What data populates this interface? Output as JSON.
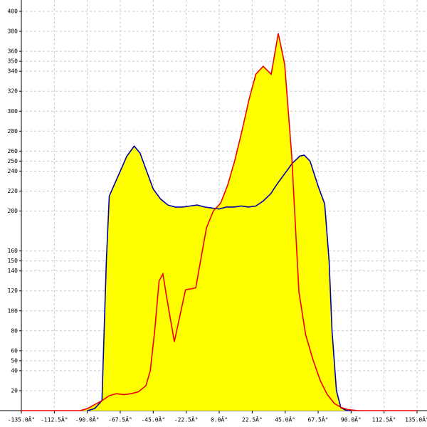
{
  "chart_data": {
    "type": "area-line",
    "xlim": [
      -135,
      135
    ],
    "ylim": [
      0,
      400
    ],
    "xticks": [
      {
        "value": -135,
        "label": "-135.0Â°"
      },
      {
        "value": -112.5,
        "label": "-112.5Â°"
      },
      {
        "value": -90,
        "label": "-90.0Â°"
      },
      {
        "value": -67.5,
        "label": "-67.5Â°"
      },
      {
        "value": -45,
        "label": "-45.0Â°"
      },
      {
        "value": -22.5,
        "label": "-22.5Â°"
      },
      {
        "value": 0,
        "label": "0.0Â°"
      },
      {
        "value": 22.5,
        "label": "22.5Â°"
      },
      {
        "value": 45,
        "label": "45.0Â°"
      },
      {
        "value": 67.5,
        "label": "67.5Â°"
      },
      {
        "value": 90,
        "label": "90.0Â°"
      },
      {
        "value": 112.5,
        "label": "112.5Â°"
      },
      {
        "value": 135,
        "label": "135.0Â°"
      }
    ],
    "yticks": [
      20,
      40,
      50,
      60,
      80,
      100,
      120,
      140,
      150,
      160,
      200,
      220,
      240,
      250,
      260,
      280,
      300,
      320,
      340,
      350,
      360,
      380,
      400
    ],
    "grid": true,
    "fill": "#ffff00",
    "series": [
      {
        "color": "#0000aa",
        "x": [
          -90,
          -85,
          -80,
          -77,
          -75,
          -72,
          -67.5,
          -63,
          -58,
          -54,
          -50,
          -45,
          -40,
          -35,
          -30,
          -25,
          -20,
          -15,
          -10,
          -5,
          0,
          5,
          10,
          15,
          20,
          25,
          30,
          35,
          40,
          45,
          50,
          55,
          58,
          62,
          67.5,
          72,
          75,
          77,
          80,
          83,
          87,
          90
        ],
        "values": [
          0,
          2,
          10,
          150,
          215,
          225,
          240,
          255,
          265,
          258,
          242,
          222,
          212,
          206,
          204,
          204,
          205,
          206,
          204,
          203,
          202,
          204,
          204,
          205,
          204,
          205,
          210,
          217,
          228,
          238,
          248,
          255,
          256,
          250,
          225,
          207,
          150,
          80,
          20,
          3,
          0,
          0
        ]
      },
      {
        "color": "#ee0000",
        "x": [
          -135,
          -95,
          -90,
          -85,
          -80,
          -75,
          -70,
          -65,
          -60,
          -55,
          -50,
          -47,
          -44,
          -41,
          -38.4,
          -36,
          -30.6,
          -23,
          -16,
          -8.7,
          -4,
          1,
          5.8,
          10.7,
          15.5,
          20.4,
          25,
          30,
          35.5,
          40.3,
          44.7,
          49.5,
          54.4,
          59,
          64,
          69,
          73.8,
          78.7,
          83.5,
          88,
          95,
          135
        ],
        "values": [
          0,
          0,
          2,
          6,
          10,
          15,
          17,
          16,
          17,
          19,
          25,
          40,
          80,
          130,
          137,
          115,
          69,
          121,
          123,
          183,
          200,
          208,
          226,
          251,
          280,
          312,
          337,
          345,
          337,
          378,
          347,
          255,
          119,
          76,
          51,
          30,
          16,
          7,
          3,
          1,
          0,
          0
        ]
      }
    ]
  }
}
